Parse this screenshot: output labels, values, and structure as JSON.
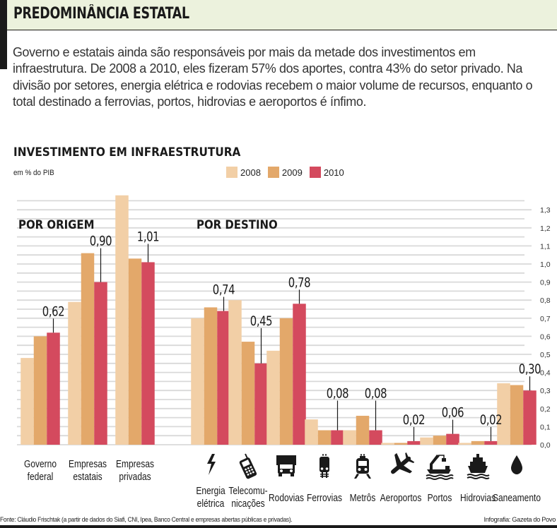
{
  "header": {
    "title": "PREDOMINÂNCIA ESTATAL"
  },
  "intro": "Governo e estatais ainda são responsáveis por mais da metade dos investimentos em infraestrutura. De 2008 a 2010, eles fizeram 57% dos aportes, contra 43% do setor privado. Na divisão por setores, energia elétrica e rodovias recebem o maior volume de recursos, enquanto o total destinado a ferrovias, portos, hidrovias e aeroportos é ínfimo.",
  "footer": {
    "source": "Fonte: Cláudio Frischtak (a partir de dados do Siafi, CNI, Ipea, Banco Central e empresas abertas públicas e privadas).",
    "credit": "Infografia: Gazeta do Povo"
  },
  "colors": {
    "2008": "#f2cfa6",
    "2009": "#e3a86a",
    "2010": "#d44a5e",
    "header_bg": "#ecf2dd",
    "grid": "#d9d9d9"
  },
  "chart_data": {
    "type": "bar",
    "title": "INVESTIMENTO EM INFRAESTRUTURA",
    "ylabel": "em % do PIB",
    "xlabel": "",
    "ylim": [
      0,
      1.3
    ],
    "yticks": [
      "0,0",
      "0,1",
      "0,2",
      "0,3",
      "0,4",
      "0,5",
      "0,6",
      "0,7",
      "0,8",
      "0,9",
      "1,0",
      "1,1",
      "1,2",
      "1,3"
    ],
    "grid": true,
    "legend_position": "top-center",
    "legend": [
      "2008",
      "2009",
      "2010"
    ],
    "groups": [
      {
        "name": "POR ORIGEM",
        "categories": [
          "Governo federal",
          "Empresas estatais",
          "Empresas privadas"
        ]
      },
      {
        "name": "POR DESTINO",
        "categories": [
          "Energia elétrica",
          "Telecomunicações",
          "Rodovias",
          "Ferrovias",
          "Metrôs",
          "Aeroportos",
          "Portos",
          "Hidrovias",
          "Saneamento"
        ]
      }
    ],
    "categories": [
      {
        "label_lines": [
          "Governo",
          "federal"
        ],
        "icon": null
      },
      {
        "label_lines": [
          "Empresas",
          "estatais"
        ],
        "icon": null
      },
      {
        "label_lines": [
          "Empresas",
          "privadas"
        ],
        "icon": null
      },
      {
        "label_lines": [
          "Energia",
          "elétrica"
        ],
        "icon": "lightning-icon"
      },
      {
        "label_lines": [
          "Telecomu-",
          "nicações"
        ],
        "icon": "cellphone-icon"
      },
      {
        "label_lines": [
          "Rodovias"
        ],
        "icon": "truck-icon"
      },
      {
        "label_lines": [
          "Ferrovias"
        ],
        "icon": "train-icon"
      },
      {
        "label_lines": [
          "Metrôs"
        ],
        "icon": "metro-icon"
      },
      {
        "label_lines": [
          "Aeroportos"
        ],
        "icon": "airplane-icon"
      },
      {
        "label_lines": [
          "Portos"
        ],
        "icon": "port-crane-icon"
      },
      {
        "label_lines": [
          "Hidrovias"
        ],
        "icon": "ship-icon"
      },
      {
        "label_lines": [
          "Saneamento"
        ],
        "icon": "water-drop-icon"
      }
    ],
    "series": [
      {
        "name": "2008",
        "values": [
          0.48,
          0.79,
          1.38,
          0.7,
          0.8,
          0.52,
          0.14,
          0.08,
          0.01,
          0.04,
          0.01,
          0.34
        ]
      },
      {
        "name": "2009",
        "values": [
          0.6,
          1.06,
          1.03,
          0.76,
          0.57,
          0.7,
          0.08,
          0.16,
          0.01,
          0.05,
          0.02,
          0.33
        ]
      },
      {
        "name": "2010",
        "values": [
          0.62,
          0.9,
          1.01,
          0.74,
          0.45,
          0.78,
          0.08,
          0.08,
          0.02,
          0.06,
          0.02,
          0.3
        ]
      }
    ],
    "data_labels": [
      "0,62",
      "0,90",
      "1,01",
      "0,74",
      "0,45",
      "0,78",
      "0,08",
      "0,08",
      "0,02",
      "0,06",
      "0,02",
      "0,30"
    ]
  }
}
